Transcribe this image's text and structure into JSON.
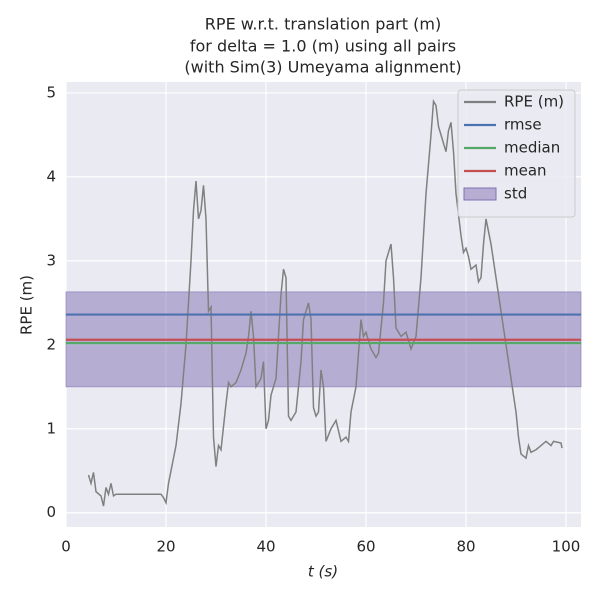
{
  "chart_data": {
    "type": "line",
    "title": [
      "RPE w.r.t. translation part (m)",
      "for delta = 1.0 (m) using all pairs",
      "(with Sim(3) Umeyama alignment)"
    ],
    "xlabel": "t (s)",
    "ylabel": "RPE (m)",
    "xlim": [
      0,
      103
    ],
    "ylim": [
      -0.17,
      5.13
    ],
    "xticks": [
      0,
      20,
      40,
      60,
      80,
      100
    ],
    "yticks": [
      0,
      1,
      2,
      3,
      4,
      5
    ],
    "grid": true,
    "legend": "upper right",
    "x": [
      4.5,
      5,
      5.5,
      6,
      7,
      7.5,
      8,
      8.5,
      9,
      9.5,
      10,
      12,
      15,
      19,
      19.5,
      20,
      20.5,
      21,
      22,
      23,
      24,
      25,
      25.5,
      26,
      26.5,
      27,
      27.5,
      28,
      28.5,
      29,
      29.5,
      30,
      30.5,
      31,
      32,
      32.5,
      33,
      34,
      35,
      36,
      36.5,
      37,
      37.5,
      38,
      39,
      39.5,
      40,
      40.5,
      41,
      42,
      43,
      43.5,
      44,
      44.5,
      45,
      46,
      47,
      47.5,
      48.5,
      49,
      49.5,
      50,
      50.5,
      51,
      51.5,
      52,
      53,
      54,
      55,
      56,
      56.5,
      57,
      58,
      59,
      59.5,
      60,
      61,
      62,
      62.5,
      63.5,
      64,
      64.5,
      65,
      65.5,
      66,
      67,
      68,
      69,
      70,
      71,
      72,
      73,
      73.5,
      74,
      74.5,
      75,
      76,
      76.5,
      77,
      77.5,
      78,
      79,
      79.5,
      80,
      80.5,
      81,
      82,
      82.5,
      83,
      83.5,
      84,
      85,
      86,
      87,
      88,
      89,
      90,
      90.5,
      91,
      92,
      92.5,
      93,
      94,
      95,
      96,
      97,
      97.5,
      99,
      99.2
    ],
    "series": [
      {
        "name": "RPE (m)",
        "color": "#808080",
        "values": [
          0.45,
          0.35,
          0.48,
          0.25,
          0.2,
          0.08,
          0.3,
          0.22,
          0.35,
          0.2,
          0.22,
          0.22,
          0.22,
          0.22,
          0.18,
          0.12,
          0.35,
          0.5,
          0.8,
          1.3,
          2.0,
          3.0,
          3.6,
          3.95,
          3.5,
          3.6,
          3.9,
          3.5,
          2.4,
          2.45,
          0.9,
          0.55,
          0.8,
          0.75,
          1.3,
          1.55,
          1.5,
          1.55,
          1.7,
          1.9,
          2.1,
          2.4,
          2.1,
          1.5,
          1.6,
          1.8,
          1.0,
          1.1,
          1.4,
          1.6,
          2.6,
          2.9,
          2.8,
          1.15,
          1.1,
          1.2,
          1.8,
          2.3,
          2.5,
          2.3,
          1.25,
          1.15,
          1.2,
          1.7,
          1.5,
          0.85,
          1.0,
          1.1,
          0.85,
          0.9,
          0.85,
          1.2,
          1.5,
          2.3,
          2.1,
          2.15,
          1.95,
          1.85,
          1.9,
          2.5,
          3.0,
          3.1,
          3.2,
          2.8,
          2.2,
          2.1,
          2.15,
          1.95,
          2.1,
          2.8,
          3.8,
          4.5,
          4.9,
          4.85,
          4.6,
          4.5,
          4.3,
          4.55,
          4.65,
          4.3,
          3.8,
          3.3,
          3.1,
          3.15,
          3.05,
          2.9,
          2.95,
          2.75,
          2.8,
          3.2,
          3.5,
          3.2,
          2.8,
          2.4,
          2.0,
          1.6,
          1.2,
          0.9,
          0.7,
          0.65,
          0.8,
          0.72,
          0.75,
          0.8,
          0.85,
          0.8,
          0.85,
          0.83,
          0.77
        ]
      }
    ],
    "hlines": [
      {
        "name": "rmse",
        "color": "#4c72b0",
        "value": 2.36
      },
      {
        "name": "median",
        "color": "#55a868",
        "value": 2.02
      },
      {
        "name": "mean",
        "color": "#c44e52",
        "value": 2.06
      }
    ],
    "band": {
      "name": "std",
      "color": "#8172b2",
      "range": [
        1.5,
        2.63
      ]
    }
  }
}
